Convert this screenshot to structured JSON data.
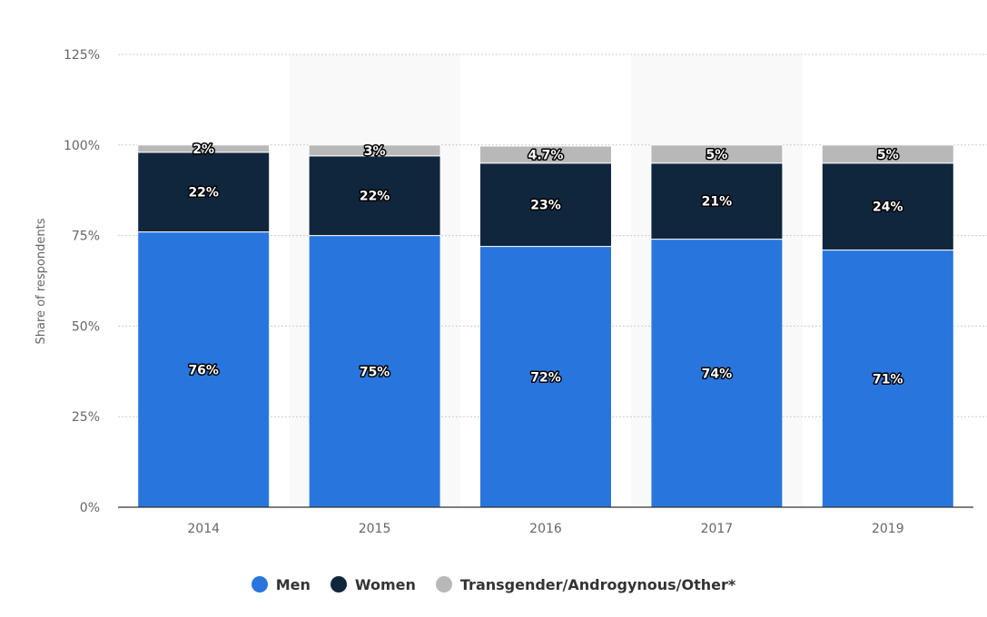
{
  "chart_data": {
    "type": "bar",
    "stacked": true,
    "categories": [
      "2014",
      "2015",
      "2016",
      "2017",
      "2019"
    ],
    "series": [
      {
        "name": "Men",
        "color": "#2876dd",
        "values": [
          76,
          75,
          72,
          74,
          71
        ],
        "labels": [
          "76%",
          "75%",
          "72%",
          "74%",
          "71%"
        ]
      },
      {
        "name": "Women",
        "color": "#10263d",
        "values": [
          22,
          22,
          23,
          21,
          24
        ],
        "labels": [
          "22%",
          "22%",
          "23%",
          "21%",
          "24%"
        ]
      },
      {
        "name": "Transgender/Androgynous/Other*",
        "color": "#b8b8b8",
        "values": [
          2,
          3,
          4.7,
          5,
          5
        ],
        "labels": [
          "2%",
          "3%",
          "4.7%",
          "5%",
          "5%"
        ]
      }
    ],
    "ylabel": "Share of respondents",
    "ylim": [
      0,
      125
    ],
    "yticks": [
      0,
      25,
      50,
      75,
      100,
      125
    ],
    "ytick_labels": [
      "0%",
      "25%",
      "50%",
      "75%",
      "100%",
      "125%"
    ],
    "grid": true,
    "legend_position": "bottom"
  }
}
